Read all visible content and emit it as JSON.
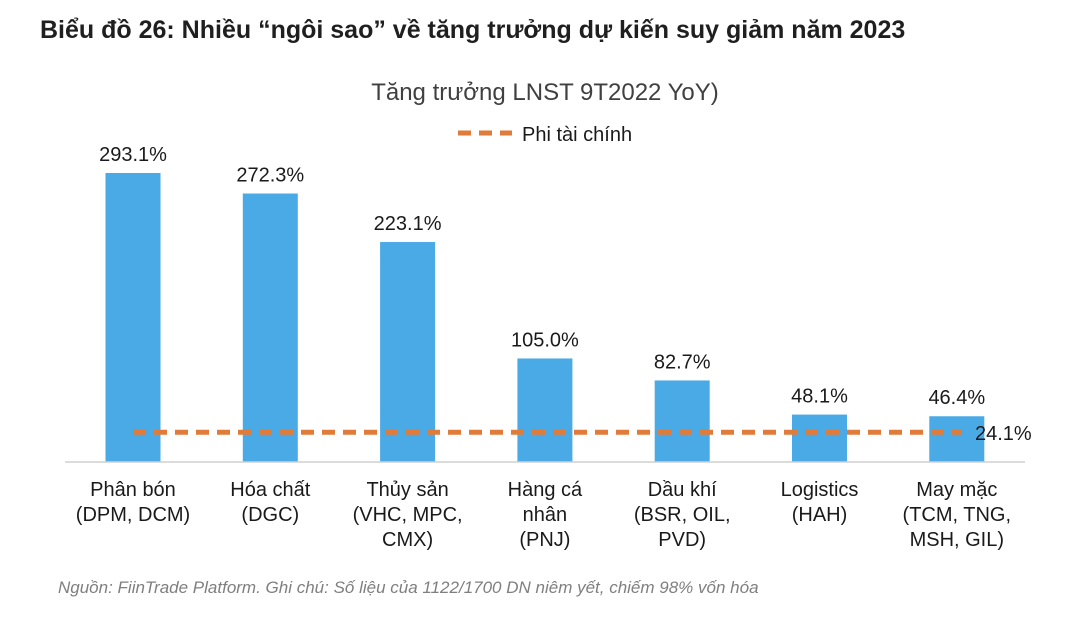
{
  "figure": {
    "title": "Biểu đồ 26: Nhiều “ngôi sao” về tăng trưởng dự kiến suy giảm năm 2023",
    "source_note": "Nguồn: FiinTrade Platform. Ghi chú: Số liệu của 1122/1700 DN niêm yết, chiếm 98% vốn hóa"
  },
  "chart_data": {
    "type": "bar",
    "title": "Tăng trưởng LNST 9T2022 YoY)",
    "categories": [
      [
        "Phân bón",
        "(DPM, DCM)"
      ],
      [
        "Hóa chất",
        "(DGC)"
      ],
      [
        "Thủy sản",
        "(VHC, MPC,",
        "CMX)"
      ],
      [
        "Hàng cá",
        "nhân",
        "(PNJ)"
      ],
      [
        "Dầu khí",
        "(BSR, OIL,",
        "PVD)"
      ],
      [
        "Logistics",
        "(HAH)"
      ],
      [
        "May mặc",
        "(TCM, TNG,",
        "MSH, GIL)"
      ]
    ],
    "series": [
      {
        "name": "Tăng trưởng LNST 9T2022 YoY",
        "values": [
          293.1,
          272.3,
          223.1,
          105.0,
          82.7,
          48.1,
          46.4
        ],
        "labels": [
          "293.1%",
          "272.3%",
          "223.1%",
          "105.0%",
          "82.7%",
          "48.1%",
          "46.4%"
        ],
        "color": "#4aaae6"
      }
    ],
    "reference_line": {
      "name": "Phi tài chính",
      "value": 24.1,
      "label": "24.1%",
      "color": "#e07b39",
      "style": "dashed"
    },
    "ylim": [
      0,
      300
    ],
    "grid": false,
    "legend": "top-center",
    "xlabel": "",
    "ylabel": ""
  }
}
